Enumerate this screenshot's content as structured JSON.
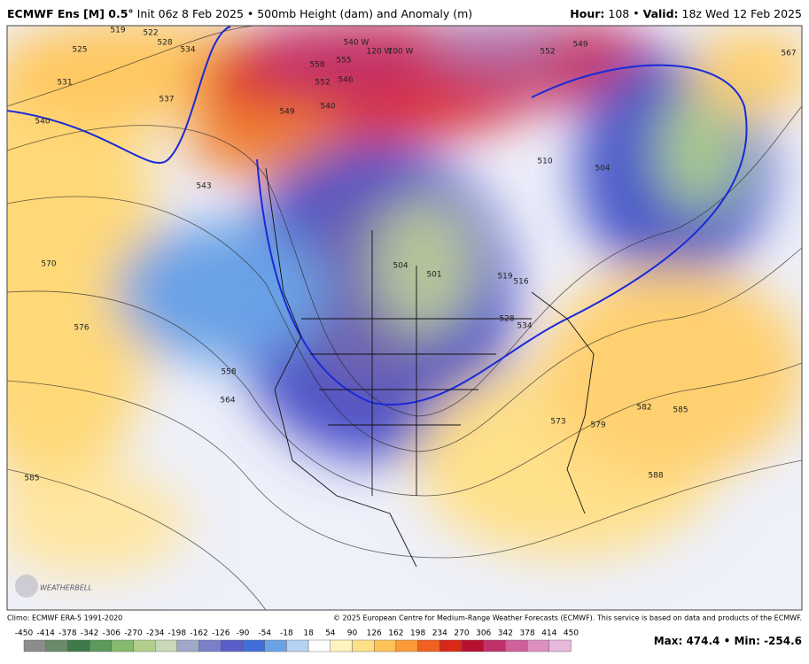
{
  "header": {
    "model": "ECMWF Ens [M] 0.5°",
    "description": "Init 06z 8 Feb 2025 • 500mb Height (dam) and Anomaly (m)",
    "hour_label": "Hour:",
    "hour": "108",
    "valid_label": "Valid:",
    "valid": "18z Wed 12 Feb 2025"
  },
  "map": {
    "contour_labels": [
      "519",
      "522",
      "525",
      "528",
      "534",
      "531",
      "537",
      "540",
      "543",
      "549",
      "552",
      "555",
      "558",
      "546",
      "540",
      "510",
      "504",
      "501",
      "504",
      "519",
      "516",
      "528",
      "534",
      "570",
      "576",
      "558",
      "564",
      "585",
      "573",
      "579",
      "582",
      "585",
      "588",
      "567",
      "549",
      "552",
      "540 W",
      "120 W",
      "100 W"
    ],
    "logo": "WEATHERBELL"
  },
  "footer": {
    "climo": "Climo: ECMWF ERA-5 1991-2020",
    "copyright": "© 2025 European Centre for Medium-Range Weather Forecasts (ECMWF). This service is based on data and products of the ECMWF.",
    "max_label": "Max:",
    "max": "474.4",
    "separator": "•",
    "min_label": "Min:",
    "min": "-254.6"
  },
  "colorbar": {
    "labels": [
      "-450",
      "-414",
      "-378",
      "-342",
      "-306",
      "-270",
      "-234",
      "-198",
      "-162",
      "-126",
      "-90",
      "-54",
      "-18",
      "18",
      "54",
      "90",
      "126",
      "162",
      "198",
      "234",
      "270",
      "306",
      "342",
      "378",
      "414",
      "450"
    ],
    "colors": [
      "#8c8c8c",
      "#6b8a6b",
      "#3f7a4a",
      "#5a9a5a",
      "#86b86e",
      "#b2cf8c",
      "#c8d8b8",
      "#9fa8c8",
      "#7a80c8",
      "#5a5ec8",
      "#3f6fd8",
      "#6aa2e6",
      "#b6d2f2",
      "#ffffff",
      "#fff4c0",
      "#ffe08a",
      "#ffc258",
      "#fb9a38",
      "#f06020",
      "#d82818",
      "#b81030",
      "#c0306a",
      "#d0609a",
      "#dd90c0",
      "#e8b8dc"
    ]
  }
}
